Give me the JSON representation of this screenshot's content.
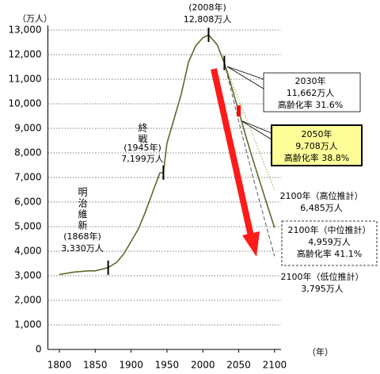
{
  "chart_data": {
    "type": "line",
    "y_unit": "（万人）",
    "x_unit": "（年）",
    "xlim": [
      1784,
      2109
    ],
    "ylim": [
      0,
      13000
    ],
    "xticks": [
      1800,
      1850,
      1900,
      1950,
      2000,
      2050,
      2100
    ],
    "yticks": [
      {
        "value": 0,
        "label": "0"
      },
      {
        "value": 1000,
        "label": "1,000"
      },
      {
        "value": 2000,
        "label": "2,000"
      },
      {
        "value": 3000,
        "label": "3,000"
      },
      {
        "value": 4000,
        "label": "4,000"
      },
      {
        "value": 5000,
        "label": "5,000"
      },
      {
        "value": 6000,
        "label": "6,000"
      },
      {
        "value": 7000,
        "label": "7,000"
      },
      {
        "value": 8000,
        "label": "8,000"
      },
      {
        "value": 9000,
        "label": "9,000"
      },
      {
        "value": 10000,
        "label": "10,000"
      },
      {
        "value": 11000,
        "label": "11,000"
      },
      {
        "value": 12000,
        "label": "12,000"
      },
      {
        "value": 13000,
        "label": "13,000"
      }
    ],
    "grid": true,
    "series": [
      {
        "color": "#5a6b2a",
        "style": "solid",
        "x": [
          1800,
          1820,
          1840,
          1850,
          1868,
          1880,
          1890,
          1900,
          1910,
          1920,
          1930,
          1940,
          1945,
          1950,
          1960,
          1970,
          1980,
          1990,
          2000,
          2008,
          2020,
          2030,
          2040,
          2050,
          2060,
          2070,
          2080,
          2090,
          2100
        ],
        "values": [
          3050,
          3150,
          3200,
          3200,
          3330,
          3550,
          3900,
          4400,
          4900,
          5600,
          6400,
          7190,
          7199,
          8400,
          9400,
          10400,
          11700,
          12360,
          12690,
          12808,
          12400,
          11662,
          10700,
          9708,
          8670,
          7700,
          6780,
          5850,
          4959
        ]
      },
      {
        "color": "#9aa84a",
        "style": "dotted",
        "x": [
          2030,
          2050,
          2070,
          2100
        ],
        "values": [
          11662,
          10200,
          8700,
          6485
        ]
      },
      {
        "color": "#555555",
        "style": "dashed",
        "x": [
          2030,
          2050,
          2070,
          2100
        ],
        "values": [
          11662,
          9300,
          7000,
          3795
        ]
      }
    ],
    "annotations": [
      {
        "text": "明治維新",
        "lines": [
          "(1868年)",
          "3,330万人"
        ],
        "x": 1868,
        "value": 3330,
        "marker_color": "#000000"
      },
      {
        "text": "終戦",
        "lines": [
          "(1945年)",
          "7,199万人"
        ],
        "x": 1945,
        "value": 7199,
        "marker_color": "#000000"
      },
      {
        "lines": [
          "(2008年)",
          "12,808万人"
        ],
        "x": 2008,
        "value": 12808,
        "marker_color": "#000000"
      },
      {
        "lines": [
          "2030年",
          "11,662万人",
          "高齢化率 31.6%"
        ],
        "x": 2030,
        "value": 11662,
        "marker_color": "#000000"
      },
      {
        "lines": [
          "2050年",
          "9,708万人",
          "高齢化率 38.8%"
        ],
        "x": 2050,
        "value": 9708,
        "marker_color": "#ff0000"
      },
      {
        "lines": [
          "2100年（高位推計）",
          "6,485万人"
        ]
      },
      {
        "lines": [
          "2100年（中位推計）",
          "4,959万人",
          "高齢化率 41.1%"
        ]
      },
      {
        "lines": [
          "2100年（低位推計）",
          "3,795万人"
        ]
      }
    ]
  }
}
